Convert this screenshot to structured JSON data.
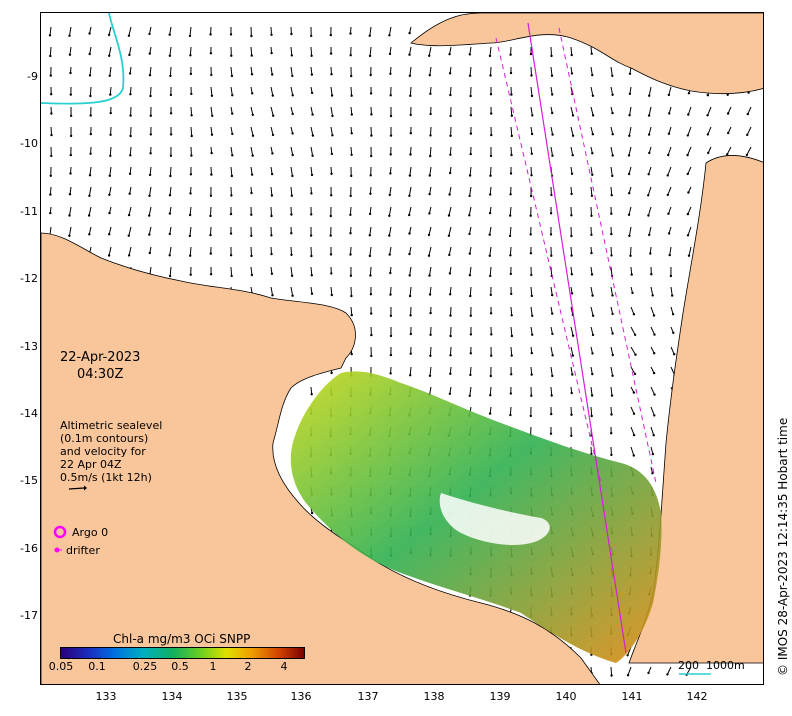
{
  "map": {
    "date": "22-Apr-2023",
    "time": "04:30Z",
    "lat_labels": [
      "-9",
      "-10",
      "-11",
      "-12",
      "-13",
      "-14",
      "-15",
      "-16",
      "-17"
    ],
    "lon_labels": [
      "133",
      "134",
      "135",
      "136",
      "137",
      "138",
      "139",
      "140",
      "141",
      "142"
    ],
    "altimetry_legend": {
      "line1": "Altimetric sealevel",
      "line2": "(0.1m contours)",
      "line3": "and velocity for",
      "line4": "22 Apr 04Z",
      "line5": "0.5m/s (1kt 12h)"
    },
    "argo_label": "Argo 0",
    "drifter_label": "drifter",
    "colorbar": {
      "title": "Chl-a mg/m3 OCi SNPP",
      "ticks": [
        "0.05",
        "0.1",
        "0.25",
        "0.5",
        "1",
        "2",
        "4"
      ]
    },
    "scale_bar": {
      "label1": "200",
      "label2": "1000m"
    },
    "credit": "© IMOS 28-Apr-2023 12:14:35 Hobart time",
    "colors": {
      "land": "#f9c59b",
      "argo": "#ff00ff",
      "drifter": "#ff00ff",
      "track": "#d61fd6",
      "contour_200m": "#2ad0d0",
      "vector": "#000000"
    }
  }
}
